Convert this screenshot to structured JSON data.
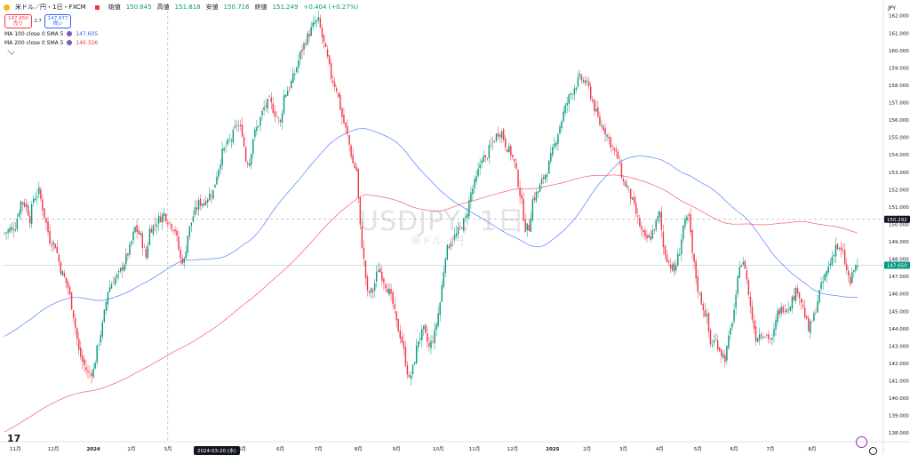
{
  "header": {
    "symbol": "米ドル／円・1日・FXCM",
    "open_label": "始値",
    "open": "150.845",
    "high_label": "高値",
    "high": "151.818",
    "low_label": "安値",
    "low": "150.716",
    "close_label": "終値",
    "close": "151.249",
    "change": "+0.404 (+0.27%)"
  },
  "buttons": {
    "sell_price": "147.650",
    "sell_label": "売り",
    "spread": "2.7",
    "buy_price": "147.677",
    "buy_label": "買い"
  },
  "legend": {
    "ma100_text": "MA 100 close 0 SMA 5",
    "ma100_value": "147.605",
    "ma200_text": "MA 200 close 0 SMA 5",
    "ma200_value": "146.326"
  },
  "currency": "JPY",
  "watermark": {
    "symbol": "USDJPY, 1日",
    "name": "米ドル／円"
  },
  "cursor_date": "2024-03-20 (水)",
  "colors": {
    "up": "#089981",
    "down": "#f23645",
    "ma100": "#2962ff",
    "ma200": "#f23645",
    "dashed": "#9598a1"
  },
  "icons": [
    "chart-icon",
    "settings-icon",
    "gear-icon",
    "lightning-icon"
  ],
  "chart_data": {
    "type": "candlestick",
    "xlabel": "",
    "ylabel": "",
    "ylim": [
      137.5,
      162.6
    ],
    "y_ticks": [
      "138.000",
      "139.000",
      "140.000",
      "141.000",
      "142.000",
      "143.000",
      "144.000",
      "145.000",
      "146.000",
      "147.000",
      "148.000",
      "149.000",
      "150.000",
      "151.000",
      "152.000",
      "153.000",
      "154.000",
      "155.000",
      "156.000",
      "157.000",
      "158.000",
      "159.000",
      "160.000",
      "161.000",
      "162.000"
    ],
    "x_ticks": [
      "11月",
      "12月",
      "2024",
      "2月",
      "3月",
      "4月",
      "5月",
      "6月",
      "7月",
      "8月",
      "9月",
      "10月",
      "11月",
      "12月",
      "2025",
      "2月",
      "3月",
      "4月",
      "5月",
      "6月",
      "7月",
      "8月"
    ],
    "x_tick_index": [
      6,
      27,
      49,
      70,
      90,
      110,
      131,
      152,
      173,
      195,
      216,
      239,
      259,
      280,
      302,
      321,
      341,
      361,
      382,
      402,
      422,
      445
    ],
    "last_price_label": "147.650",
    "crosshair_price_label": "150.292",
    "series": [
      {
        "name": "USDJPY",
        "anchors": [
          [
            0,
            149.5
          ],
          [
            6,
            149.9
          ],
          [
            9,
            151.3
          ],
          [
            12,
            151.1
          ],
          [
            14,
            150.3
          ],
          [
            16,
            151.5
          ],
          [
            19,
            151.9
          ],
          [
            22,
            150.5
          ],
          [
            25,
            149.1
          ],
          [
            28,
            148.8
          ],
          [
            31,
            147.4
          ],
          [
            35,
            146.4
          ],
          [
            38,
            144.8
          ],
          [
            41,
            142.7
          ],
          [
            43,
            142.1
          ],
          [
            46,
            141.4
          ],
          [
            49,
            141.6
          ],
          [
            51,
            142.8
          ],
          [
            54,
            144.2
          ],
          [
            57,
            146.2
          ],
          [
            60,
            146.8
          ],
          [
            63,
            147.1
          ],
          [
            66,
            147.8
          ],
          [
            69,
            148.6
          ],
          [
            72,
            149.8
          ],
          [
            75,
            149.3
          ],
          [
            78,
            148.1
          ],
          [
            80,
            149.7
          ],
          [
            82,
            149.9
          ],
          [
            85,
            150.3
          ],
          [
            88,
            150.6
          ],
          [
            91,
            150.1
          ],
          [
            94,
            149.7
          ],
          [
            97,
            148.0
          ],
          [
            99,
            147.9
          ],
          [
            101,
            149.4
          ],
          [
            104,
            150.5
          ],
          [
            107,
            151.2
          ],
          [
            110,
            151.3
          ],
          [
            113,
            151.7
          ],
          [
            115,
            151.9
          ],
          [
            117,
            152.9
          ],
          [
            120,
            154.1
          ],
          [
            122,
            154.5
          ],
          [
            125,
            154.9
          ],
          [
            128,
            155.8
          ],
          [
            131,
            155.3
          ],
          [
            133,
            153.7
          ],
          [
            135,
            153.6
          ],
          [
            137,
            155.0
          ],
          [
            140,
            155.8
          ],
          [
            143,
            156.7
          ],
          [
            146,
            157.1
          ],
          [
            149,
            156.4
          ],
          [
            152,
            155.8
          ],
          [
            154,
            157.4
          ],
          [
            157,
            157.9
          ],
          [
            160,
            158.7
          ],
          [
            163,
            159.8
          ],
          [
            166,
            160.6
          ],
          [
            169,
            161.2
          ],
          [
            171,
            161.6
          ],
          [
            173,
            161.7
          ],
          [
            175,
            160.8
          ],
          [
            178,
            159.5
          ],
          [
            180,
            158.5
          ],
          [
            183,
            157.8
          ],
          [
            186,
            156.2
          ],
          [
            189,
            155.1
          ],
          [
            192,
            153.5
          ],
          [
            194,
            153.1
          ],
          [
            196,
            149.8
          ],
          [
            198,
            147.9
          ],
          [
            200,
            146.0
          ],
          [
            203,
            146.2
          ],
          [
            206,
            147.5
          ],
          [
            209,
            146.8
          ],
          [
            212,
            146.1
          ],
          [
            214,
            145.4
          ],
          [
            216,
            144.3
          ],
          [
            219,
            143.3
          ],
          [
            221,
            142.1
          ],
          [
            223,
            141.0
          ],
          [
            225,
            141.7
          ],
          [
            228,
            143.4
          ],
          [
            231,
            143.9
          ],
          [
            234,
            142.9
          ],
          [
            237,
            143.7
          ],
          [
            240,
            145.5
          ],
          [
            243,
            148.3
          ],
          [
            246,
            149.1
          ],
          [
            249,
            149.4
          ],
          [
            251,
            149.8
          ],
          [
            254,
            150.3
          ],
          [
            257,
            151.8
          ],
          [
            260,
            152.6
          ],
          [
            263,
            153.9
          ],
          [
            265,
            153.7
          ],
          [
            267,
            154.3
          ],
          [
            269,
            154.7
          ],
          [
            272,
            155.3
          ],
          [
            274,
            155.3
          ],
          [
            276,
            154.6
          ],
          [
            279,
            154.1
          ],
          [
            281,
            153.5
          ],
          [
            283,
            152.4
          ],
          [
            285,
            151.2
          ],
          [
            287,
            149.8
          ],
          [
            289,
            149.8
          ],
          [
            291,
            151.4
          ],
          [
            294,
            151.9
          ],
          [
            297,
            152.7
          ],
          [
            299,
            153.1
          ],
          [
            302,
            154.2
          ],
          [
            305,
            155.3
          ],
          [
            308,
            156.4
          ],
          [
            311,
            157.3
          ],
          [
            314,
            157.9
          ],
          [
            317,
            158.4
          ],
          [
            320,
            158.2
          ],
          [
            322,
            157.8
          ],
          [
            325,
            156.7
          ],
          [
            328,
            155.8
          ],
          [
            330,
            155.6
          ],
          [
            333,
            154.9
          ],
          [
            336,
            154.2
          ],
          [
            338,
            153.8
          ],
          [
            341,
            152.4
          ],
          [
            343,
            152.2
          ],
          [
            346,
            151.3
          ],
          [
            348,
            150.6
          ],
          [
            351,
            149.6
          ],
          [
            353,
            149.1
          ],
          [
            356,
            149.3
          ],
          [
            358,
            149.8
          ],
          [
            361,
            150.6
          ],
          [
            363,
            148.7
          ],
          [
            366,
            147.8
          ],
          [
            369,
            147.3
          ],
          [
            372,
            148.5
          ],
          [
            374,
            149.9
          ],
          [
            377,
            150.4
          ],
          [
            379,
            148.3
          ],
          [
            382,
            146.3
          ],
          [
            385,
            145.2
          ],
          [
            387,
            144.6
          ],
          [
            389,
            143.1
          ],
          [
            392,
            143.3
          ],
          [
            395,
            142.6
          ],
          [
            397,
            142.3
          ],
          [
            400,
            143.9
          ],
          [
            403,
            145.7
          ],
          [
            405,
            147.8
          ],
          [
            408,
            147.6
          ],
          [
            411,
            145.2
          ],
          [
            414,
            143.5
          ],
          [
            417,
            143.8
          ],
          [
            420,
            143.6
          ],
          [
            423,
            143.3
          ],
          [
            426,
            144.9
          ],
          [
            429,
            145.2
          ],
          [
            432,
            145.3
          ],
          [
            435,
            145.9
          ],
          [
            437,
            146.3
          ],
          [
            440,
            145.2
          ],
          [
            443,
            143.9
          ],
          [
            446,
            144.7
          ],
          [
            449,
            146.1
          ],
          [
            452,
            147.0
          ],
          [
            455,
            147.8
          ],
          [
            458,
            148.8
          ],
          [
            460,
            148.5
          ],
          [
            462,
            148.3
          ],
          [
            464,
            147.3
          ],
          [
            466,
            146.6
          ],
          [
            468,
            147.4
          ],
          [
            470,
            147.7
          ]
        ]
      },
      {
        "name": "MA 100",
        "value": 147.605
      },
      {
        "name": "MA 200",
        "value": 146.326
      }
    ]
  }
}
